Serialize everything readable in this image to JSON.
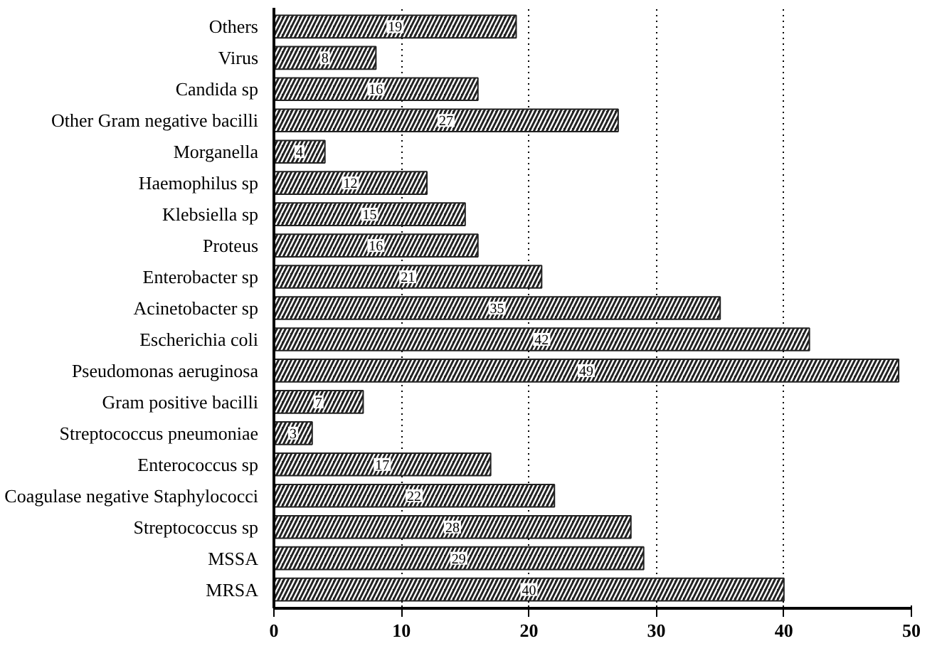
{
  "chart_data": {
    "type": "bar",
    "orientation": "horizontal",
    "categories": [
      "Others",
      "Virus",
      "Candida sp",
      "Other Gram negative bacilli",
      "Morganella",
      "Haemophilus sp",
      "Klebsiella sp",
      "Proteus",
      "Enterobacter sp",
      "Acinetobacter sp",
      "Escherichia coli",
      "Pseudomonas aeruginosa",
      "Gram positive bacilli",
      "Streptococcus pneumoniae",
      "Enterococcus sp",
      "Coagulase negative Staphylococci",
      "Streptococcus sp",
      "MSSA",
      "MRSA"
    ],
    "values": [
      19,
      8,
      16,
      27,
      4,
      12,
      15,
      16,
      21,
      35,
      42,
      49,
      7,
      3,
      17,
      22,
      28,
      29,
      40
    ],
    "color": "#222222",
    "xlim": [
      0,
      50
    ],
    "xticks": [
      0,
      10,
      20,
      30,
      40,
      50
    ],
    "grid": "x",
    "data_labels": true
  }
}
